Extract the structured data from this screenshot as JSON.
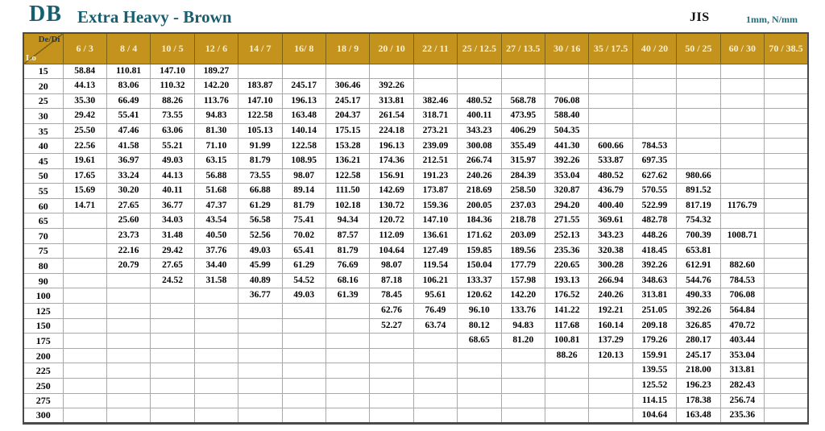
{
  "page": {
    "code": "DB",
    "title": "Extra Heavy - Brown",
    "standard": "JIS",
    "units": "1mm, N/mm"
  },
  "colors": {
    "header_gold": "#C3931E",
    "header_text": "#F6EFD3",
    "title_teal": "#175E6E",
    "units_teal": "#1A7080",
    "dedi_text": "#203864"
  },
  "table": {
    "corner": {
      "top_label": "De/Di",
      "bottom_label": "Lo"
    },
    "columns": [
      "6 / 3",
      "8 / 4",
      "10 / 5",
      "12 / 6",
      "14 / 7",
      "16/ 8",
      "18 / 9",
      "20 / 10",
      "22 / 11",
      "25 / 12.5",
      "27 / 13.5",
      "30 / 16",
      "35 / 17.5",
      "40 / 20",
      "50 / 25",
      "60 / 30",
      "70 / 38.5"
    ],
    "rows": [
      {
        "lo": "15",
        "values": [
          "58.84",
          "110.81",
          "147.10",
          "189.27",
          "",
          "",
          "",
          "",
          "",
          "",
          "",
          "",
          "",
          "",
          "",
          "",
          ""
        ]
      },
      {
        "lo": "20",
        "values": [
          "44.13",
          "83.06",
          "110.32",
          "142.20",
          "183.87",
          "245.17",
          "306.46",
          "392.26",
          "",
          "",
          "",
          "",
          "",
          "",
          "",
          "",
          ""
        ]
      },
      {
        "lo": "25",
        "values": [
          "35.30",
          "66.49",
          "88.26",
          "113.76",
          "147.10",
          "196.13",
          "245.17",
          "313.81",
          "382.46",
          "480.52",
          "568.78",
          "706.08",
          "",
          "",
          "",
          "",
          ""
        ]
      },
      {
        "lo": "30",
        "values": [
          "29.42",
          "55.41",
          "73.55",
          "94.83",
          "122.58",
          "163.48",
          "204.37",
          "261.54",
          "318.71",
          "400.11",
          "473.95",
          "588.40",
          "",
          "",
          "",
          "",
          ""
        ]
      },
      {
        "lo": "35",
        "values": [
          "25.50",
          "47.46",
          "63.06",
          "81.30",
          "105.13",
          "140.14",
          "175.15",
          "224.18",
          "273.21",
          "343.23",
          "406.29",
          "504.35",
          "",
          "",
          "",
          "",
          ""
        ]
      },
      {
        "lo": "40",
        "values": [
          "22.56",
          "41.58",
          "55.21",
          "71.10",
          "91.99",
          "122.58",
          "153.28",
          "196.13",
          "239.09",
          "300.08",
          "355.49",
          "441.30",
          "600.66",
          "784.53",
          "",
          "",
          ""
        ]
      },
      {
        "lo": "45",
        "values": [
          "19.61",
          "36.97",
          "49.03",
          "63.15",
          "81.79",
          "108.95",
          "136.21",
          "174.36",
          "212.51",
          "266.74",
          "315.97",
          "392.26",
          "533.87",
          "697.35",
          "",
          "",
          ""
        ]
      },
      {
        "lo": "50",
        "values": [
          "17.65",
          "33.24",
          "44.13",
          "56.88",
          "73.55",
          "98.07",
          "122.58",
          "156.91",
          "191.23",
          "240.26",
          "284.39",
          "353.04",
          "480.52",
          "627.62",
          "980.66",
          "",
          ""
        ]
      },
      {
        "lo": "55",
        "values": [
          "15.69",
          "30.20",
          "40.11",
          "51.68",
          "66.88",
          "89.14",
          "111.50",
          "142.69",
          "173.87",
          "218.69",
          "258.50",
          "320.87",
          "436.79",
          "570.55",
          "891.52",
          "",
          ""
        ]
      },
      {
        "lo": "60",
        "values": [
          "14.71",
          "27.65",
          "36.77",
          "47.37",
          "61.29",
          "81.79",
          "102.18",
          "130.72",
          "159.36",
          "200.05",
          "237.03",
          "294.20",
          "400.40",
          "522.99",
          "817.19",
          "1176.79",
          ""
        ]
      },
      {
        "lo": "65",
        "values": [
          "",
          "25.60",
          "34.03",
          "43.54",
          "56.58",
          "75.41",
          "94.34",
          "120.72",
          "147.10",
          "184.36",
          "218.78",
          "271.55",
          "369.61",
          "482.78",
          "754.32",
          "",
          ""
        ]
      },
      {
        "lo": "70",
        "values": [
          "",
          "23.73",
          "31.48",
          "40.50",
          "52.56",
          "70.02",
          "87.57",
          "112.09",
          "136.61",
          "171.62",
          "203.09",
          "252.13",
          "343.23",
          "448.26",
          "700.39",
          "1008.71",
          ""
        ]
      },
      {
        "lo": "75",
        "values": [
          "",
          "22.16",
          "29.42",
          "37.76",
          "49.03",
          "65.41",
          "81.79",
          "104.64",
          "127.49",
          "159.85",
          "189.56",
          "235.36",
          "320.38",
          "418.45",
          "653.81",
          "",
          ""
        ]
      },
      {
        "lo": "80",
        "values": [
          "",
          "20.79",
          "27.65",
          "34.40",
          "45.99",
          "61.29",
          "76.69",
          "98.07",
          "119.54",
          "150.04",
          "177.79",
          "220.65",
          "300.28",
          "392.26",
          "612.91",
          "882.60",
          ""
        ]
      },
      {
        "lo": "90",
        "values": [
          "",
          "",
          "24.52",
          "31.58",
          "40.89",
          "54.52",
          "68.16",
          "87.18",
          "106.21",
          "133.37",
          "157.98",
          "193.13",
          "266.94",
          "348.63",
          "544.76",
          "784.53",
          ""
        ]
      },
      {
        "lo": "100",
        "values": [
          "",
          "",
          "",
          "",
          "36.77",
          "49.03",
          "61.39",
          "78.45",
          "95.61",
          "120.62",
          "142.20",
          "176.52",
          "240.26",
          "313.81",
          "490.33",
          "706.08",
          ""
        ]
      },
      {
        "lo": "125",
        "values": [
          "",
          "",
          "",
          "",
          "",
          "",
          "",
          "62.76",
          "76.49",
          "96.10",
          "133.76",
          "141.22",
          "192.21",
          "251.05",
          "392.26",
          "564.84",
          ""
        ]
      },
      {
        "lo": "150",
        "values": [
          "",
          "",
          "",
          "",
          "",
          "",
          "",
          "52.27",
          "63.74",
          "80.12",
          "94.83",
          "117.68",
          "160.14",
          "209.18",
          "326.85",
          "470.72",
          ""
        ]
      },
      {
        "lo": "175",
        "values": [
          "",
          "",
          "",
          "",
          "",
          "",
          "",
          "",
          "",
          "68.65",
          "81.20",
          "100.81",
          "137.29",
          "179.26",
          "280.17",
          "403.44",
          ""
        ]
      },
      {
        "lo": "200",
        "values": [
          "",
          "",
          "",
          "",
          "",
          "",
          "",
          "",
          "",
          "",
          "",
          "88.26",
          "120.13",
          "159.91",
          "245.17",
          "353.04",
          ""
        ]
      },
      {
        "lo": "225",
        "values": [
          "",
          "",
          "",
          "",
          "",
          "",
          "",
          "",
          "",
          "",
          "",
          "",
          "",
          "139.55",
          "218.00",
          "313.81",
          ""
        ]
      },
      {
        "lo": "250",
        "values": [
          "",
          "",
          "",
          "",
          "",
          "",
          "",
          "",
          "",
          "",
          "",
          "",
          "",
          "125.52",
          "196.23",
          "282.43",
          ""
        ]
      },
      {
        "lo": "275",
        "values": [
          "",
          "",
          "",
          "",
          "",
          "",
          "",
          "",
          "",
          "",
          "",
          "",
          "",
          "114.15",
          "178.38",
          "256.74",
          ""
        ]
      },
      {
        "lo": "300",
        "values": [
          "",
          "",
          "",
          "",
          "",
          "",
          "",
          "",
          "",
          "",
          "",
          "",
          "",
          "104.64",
          "163.48",
          "235.36",
          ""
        ]
      }
    ]
  }
}
